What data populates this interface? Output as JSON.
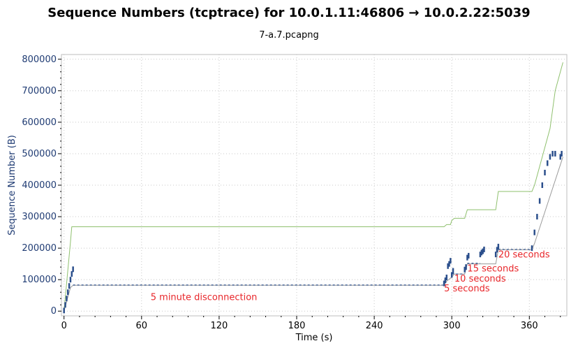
{
  "header": {
    "title": "Sequence Numbers (tcptrace) for 10.0.1.11:46806 → 10.0.2.22:5039",
    "subtitle": "7-a.7.pcapng"
  },
  "colors": {
    "data": "#2b4f8c",
    "window": "#8fc06e",
    "ack": "#9a9a9a",
    "annotation": "#e8262a",
    "grid": "#c8c8c8",
    "ylabel": "#1f3b73"
  },
  "chart_data": {
    "type": "line",
    "title": "Sequence Numbers (tcptrace) for 10.0.1.11:46806 → 10.0.2.22:5039",
    "subtitle": "7-a.7.pcapng",
    "xlabel": "Time (s)",
    "ylabel": "Sequence Number (B)",
    "xlim": [
      -2,
      389
    ],
    "ylim": [
      -15000,
      815000
    ],
    "xticks": [
      0,
      60,
      120,
      180,
      240,
      300,
      360
    ],
    "yticks": [
      0,
      100000,
      200000,
      300000,
      400000,
      500000,
      600000,
      700000,
      800000
    ],
    "xtick_labels": [
      "0",
      "60",
      "120",
      "180",
      "240",
      "300",
      "360"
    ],
    "ytick_labels": [
      "0",
      "100000",
      "200000",
      "300000",
      "400000",
      "500000",
      "600000",
      "700000",
      "800000"
    ],
    "grid": true,
    "series": [
      {
        "role": "window",
        "x": [
          0,
          5,
          6,
          10,
          294,
          296,
          299,
          300,
          302,
          310,
          312,
          322,
          324,
          334,
          336,
          362,
          364,
          376,
          380,
          384,
          386
        ],
        "y": [
          0,
          220000,
          268000,
          268000,
          268000,
          275000,
          275000,
          288000,
          295000,
          295000,
          322000,
          322000,
          322000,
          322000,
          380000,
          380000,
          400000,
          580000,
          700000,
          760000,
          790000
        ]
      },
      {
        "role": "ack",
        "x": [
          0,
          5,
          7,
          294,
          296,
          300,
          302,
          310,
          312,
          322,
          324,
          334,
          336,
          362,
          364,
          386
        ],
        "y": [
          0,
          75000,
          82000,
          82000,
          95000,
          108000,
          118000,
          118000,
          150000,
          150000,
          150000,
          150000,
          195000,
          195000,
          215000,
          490000
        ]
      },
      {
        "role": "data-segments",
        "x": [
          0,
          1,
          2,
          3,
          4,
          5,
          6,
          7,
          294,
          295,
          296,
          297,
          298,
          299,
          300,
          301,
          310,
          311,
          312,
          313,
          322,
          323,
          324,
          325,
          334,
          335,
          336,
          362,
          364,
          366,
          368,
          370,
          372,
          374,
          376,
          378,
          380,
          384,
          385
        ],
        "y": [
          2000,
          20000,
          40000,
          60000,
          80000,
          100000,
          118000,
          133000,
          88000,
          98000,
          107000,
          143000,
          150000,
          160000,
          115000,
          128000,
          132000,
          140000,
          170000,
          176000,
          180000,
          186000,
          190000,
          196000,
          180000,
          195000,
          205000,
          200000,
          250000,
          300000,
          350000,
          400000,
          440000,
          470000,
          490000,
          500000,
          500000,
          490000,
          500000
        ]
      },
      {
        "role": "gaps",
        "x": [
          7,
          293,
          300,
          310,
          312,
          322,
          336,
          362
        ],
        "y": [
          83000,
          83000,
          118000,
          118000,
          152000,
          152000,
          196000,
          196000
        ]
      }
    ],
    "annotations": [
      {
        "text": "5 minute disconnection",
        "x": 67,
        "y": 35000
      },
      {
        "text": "5 seconds",
        "x": 294,
        "y": 63000
      },
      {
        "text": "10 seconds",
        "x": 302,
        "y": 94000
      },
      {
        "text": "15 seconds",
        "x": 312,
        "y": 126000
      },
      {
        "text": "20 seconds",
        "x": 336,
        "y": 170000
      }
    ]
  }
}
